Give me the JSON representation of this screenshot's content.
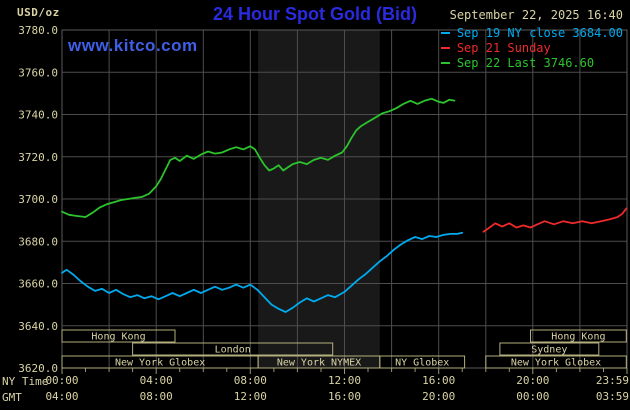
{
  "header": {
    "unit_label": "USD/oz",
    "title": "24 Hour Spot Gold (Bid)",
    "datetime": "September 22, 2025 16:40",
    "watermark": "www.kitco.com",
    "title_color": "#2a2ae0",
    "watermark_color": "#3f5fe6",
    "text_color": "#d9d3a5"
  },
  "legend": {
    "items": [
      {
        "label": "Sep 19 NY close 3684.00",
        "color": "#00aaee"
      },
      {
        "label": "Sep 21 Sunday",
        "color": "#ee2a2a"
      },
      {
        "label": "Sep 22 Last 3746.60",
        "color": "#2cc42c"
      }
    ]
  },
  "axes": {
    "x_row1_label": "NY Time",
    "x_row2_label": "GMT",
    "y_tick_labels": [
      "3780.0",
      "3760.0",
      "3740.0",
      "3720.0",
      "3700.0",
      "3680.0",
      "3660.0",
      "3640.0",
      "3620.0"
    ],
    "x_row1_ticks": [
      {
        "hour": 0,
        "label": "00:00"
      },
      {
        "hour": 4,
        "label": "04:00"
      },
      {
        "hour": 8,
        "label": "08:00"
      },
      {
        "hour": 12,
        "label": "12:00"
      },
      {
        "hour": 16,
        "label": "16:00"
      },
      {
        "hour": 20,
        "label": "20:00"
      },
      {
        "hour": 24,
        "label": "23:59"
      }
    ],
    "x_row2_ticks": [
      {
        "hour": 0,
        "label": "04:00"
      },
      {
        "hour": 4,
        "label": "08:00"
      },
      {
        "hour": 8,
        "label": "12:00"
      },
      {
        "hour": 12,
        "label": "16:00"
      },
      {
        "hour": 16,
        "label": "20:00"
      },
      {
        "hour": 20,
        "label": "00:00"
      },
      {
        "hour": 24,
        "label": "03:59"
      }
    ]
  },
  "sessions": [
    {
      "row": 0,
      "start": 0,
      "end": 4.8,
      "label": "Hong Kong"
    },
    {
      "row": 0,
      "start": 19.9,
      "end": 23.97,
      "label": "Hong Kong"
    },
    {
      "row": 1,
      "start": 3.0,
      "end": 11.5,
      "label": "London"
    },
    {
      "row": 1,
      "start": 18.6,
      "end": 22.8,
      "label": "Sydney"
    },
    {
      "row": 2,
      "start": 0,
      "end": 8.33,
      "label": "New York Globex"
    },
    {
      "row": 2,
      "start": 8.33,
      "end": 13.5,
      "label": "New York NYMEX"
    },
    {
      "row": 2,
      "start": 13.5,
      "end": 17.1,
      "label": "NY Globex"
    },
    {
      "row": 2,
      "start": 18.0,
      "end": 23.97,
      "label": "New York Globex"
    }
  ],
  "chart_data": {
    "type": "line",
    "title": "24 Hour Spot Gold (Bid)",
    "ylabel": "USD/oz",
    "x_unit": "hours NY time",
    "xlim_hours": [
      0,
      24
    ],
    "ylim": [
      3620,
      3780
    ],
    "y_grid_step": 20,
    "x_grid_step_hours": 2,
    "grid": true,
    "nymex_band_hours": [
      8.33,
      13.5
    ],
    "colors": {
      "background": "#000000",
      "band": "#191919",
      "grid": "#4d4d4d",
      "border": "#5a5a5a",
      "labels": "#d9d3a5",
      "session_box": "#b5ae7e",
      "ticks": "#9a946e"
    },
    "series": [
      {
        "name": "Sep 19",
        "color": "#00aaee",
        "points": [
          [
            0,
            3665
          ],
          [
            0.2,
            3666.5
          ],
          [
            0.5,
            3664
          ],
          [
            0.8,
            3661
          ],
          [
            1.1,
            3658.5
          ],
          [
            1.4,
            3656.5
          ],
          [
            1.7,
            3657.5
          ],
          [
            2,
            3655.5
          ],
          [
            2.3,
            3657
          ],
          [
            2.6,
            3655
          ],
          [
            2.9,
            3653.5
          ],
          [
            3.2,
            3654.5
          ],
          [
            3.5,
            3653
          ],
          [
            3.8,
            3654
          ],
          [
            4.1,
            3652.5
          ],
          [
            4.4,
            3654
          ],
          [
            4.7,
            3655.5
          ],
          [
            5,
            3654
          ],
          [
            5.3,
            3655.5
          ],
          [
            5.6,
            3657
          ],
          [
            5.9,
            3655.5
          ],
          [
            6.2,
            3657
          ],
          [
            6.5,
            3658.5
          ],
          [
            6.8,
            3657
          ],
          [
            7.1,
            3658
          ],
          [
            7.4,
            3659.5
          ],
          [
            7.7,
            3658
          ],
          [
            8,
            3659.5
          ],
          [
            8.3,
            3657
          ],
          [
            8.6,
            3653.5
          ],
          [
            8.9,
            3650
          ],
          [
            9.2,
            3648
          ],
          [
            9.5,
            3646.5
          ],
          [
            9.8,
            3648.5
          ],
          [
            10.1,
            3651
          ],
          [
            10.4,
            3653
          ],
          [
            10.7,
            3651.5
          ],
          [
            11,
            3653
          ],
          [
            11.3,
            3654.5
          ],
          [
            11.6,
            3653.5
          ],
          [
            12,
            3656
          ],
          [
            12.3,
            3659
          ],
          [
            12.6,
            3662
          ],
          [
            12.9,
            3664.5
          ],
          [
            13.2,
            3667.5
          ],
          [
            13.5,
            3670.5
          ],
          [
            13.8,
            3673
          ],
          [
            14.1,
            3676
          ],
          [
            14.4,
            3678.5
          ],
          [
            14.7,
            3680.5
          ],
          [
            15,
            3682
          ],
          [
            15.3,
            3681
          ],
          [
            15.6,
            3682.5
          ],
          [
            15.9,
            3682
          ],
          [
            16.2,
            3683
          ],
          [
            16.5,
            3683.5
          ],
          [
            16.8,
            3683.5
          ],
          [
            17,
            3684
          ]
        ]
      },
      {
        "name": "Sep 21 Sunday",
        "color": "#ee2a2a",
        "points": [
          [
            17.9,
            3684.5
          ],
          [
            18.1,
            3686
          ],
          [
            18.4,
            3688.5
          ],
          [
            18.7,
            3687
          ],
          [
            19,
            3688.5
          ],
          [
            19.3,
            3686.5
          ],
          [
            19.6,
            3687.5
          ],
          [
            19.9,
            3686.5
          ],
          [
            20.2,
            3688
          ],
          [
            20.5,
            3689.5
          ],
          [
            20.9,
            3688
          ],
          [
            21.3,
            3689.5
          ],
          [
            21.7,
            3688.5
          ],
          [
            22.1,
            3689.5
          ],
          [
            22.5,
            3688.5
          ],
          [
            22.9,
            3689.5
          ],
          [
            23.3,
            3690.5
          ],
          [
            23.6,
            3691.5
          ],
          [
            23.8,
            3693
          ],
          [
            23.97,
            3695.5
          ]
        ]
      },
      {
        "name": "Sep 22",
        "color": "#2cc42c",
        "points": [
          [
            0,
            3694
          ],
          [
            0.3,
            3692.5
          ],
          [
            0.6,
            3692
          ],
          [
            1,
            3691.5
          ],
          [
            1.3,
            3693.5
          ],
          [
            1.6,
            3696
          ],
          [
            1.9,
            3697.5
          ],
          [
            2.2,
            3698.5
          ],
          [
            2.5,
            3699.5
          ],
          [
            2.8,
            3700
          ],
          [
            3.1,
            3700.5
          ],
          [
            3.4,
            3701
          ],
          [
            3.7,
            3702.5
          ],
          [
            4,
            3706
          ],
          [
            4.2,
            3709.5
          ],
          [
            4.4,
            3714
          ],
          [
            4.6,
            3718.5
          ],
          [
            4.8,
            3719.5
          ],
          [
            5,
            3718
          ],
          [
            5.3,
            3720.5
          ],
          [
            5.6,
            3719
          ],
          [
            5.9,
            3721
          ],
          [
            6.2,
            3722.5
          ],
          [
            6.5,
            3721.5
          ],
          [
            6.8,
            3722
          ],
          [
            7.1,
            3723.5
          ],
          [
            7.4,
            3724.5
          ],
          [
            7.7,
            3723.5
          ],
          [
            8,
            3725
          ],
          [
            8.2,
            3723.5
          ],
          [
            8.4,
            3719.5
          ],
          [
            8.6,
            3716
          ],
          [
            8.8,
            3713.5
          ],
          [
            9,
            3714.5
          ],
          [
            9.2,
            3716
          ],
          [
            9.4,
            3713.5
          ],
          [
            9.6,
            3715
          ],
          [
            9.8,
            3716.5
          ],
          [
            10.1,
            3717.5
          ],
          [
            10.4,
            3716.5
          ],
          [
            10.7,
            3718.5
          ],
          [
            11,
            3719.5
          ],
          [
            11.3,
            3718.5
          ],
          [
            11.6,
            3720.5
          ],
          [
            11.9,
            3722
          ],
          [
            12.1,
            3725
          ],
          [
            12.3,
            3729
          ],
          [
            12.5,
            3732.5
          ],
          [
            12.7,
            3734.5
          ],
          [
            13,
            3736.5
          ],
          [
            13.3,
            3738.5
          ],
          [
            13.6,
            3740.5
          ],
          [
            13.9,
            3741.5
          ],
          [
            14.2,
            3743
          ],
          [
            14.5,
            3745
          ],
          [
            14.8,
            3746.5
          ],
          [
            15.1,
            3745
          ],
          [
            15.4,
            3746.5
          ],
          [
            15.7,
            3747.5
          ],
          [
            16,
            3746
          ],
          [
            16.2,
            3745.5
          ],
          [
            16.45,
            3747
          ],
          [
            16.67,
            3746.6
          ]
        ]
      }
    ]
  }
}
